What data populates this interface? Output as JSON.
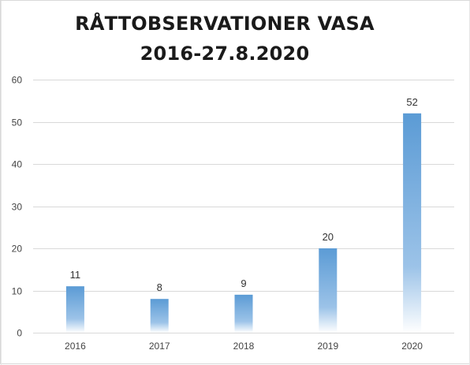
{
  "chart_data": {
    "type": "bar",
    "title": "RÅTTOBSERVATIONER VASA",
    "subtitle": "2016-27.8.2020",
    "categories": [
      "2016",
      "2017",
      "2018",
      "2019",
      "2020"
    ],
    "values": [
      11,
      8,
      9,
      20,
      52
    ],
    "data_labels": [
      "11",
      "8",
      "9",
      "20",
      "52"
    ],
    "xlabel": "",
    "ylabel": "",
    "ylim": [
      0,
      60
    ],
    "yticks": [
      "0",
      "10",
      "20",
      "30",
      "40",
      "50",
      "60"
    ],
    "ytick_values": [
      0,
      10,
      20,
      30,
      40,
      50,
      60
    ],
    "grid": true,
    "legend": "none",
    "bar_color_top": "#5b9bd5",
    "bar_color_bottom": "#ffffff",
    "grid_color": "#d9d9d9"
  }
}
